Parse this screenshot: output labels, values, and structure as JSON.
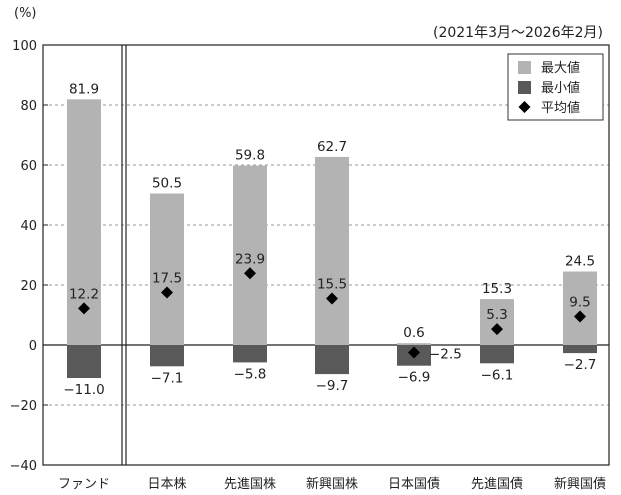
{
  "chart_data": {
    "type": "bar",
    "unit_label": "(%)",
    "period": "(2021年3月～2026年2月)",
    "categories": [
      "ファンド",
      "日本株",
      "先進国株",
      "新興国株",
      "日本国債",
      "先進国債",
      "新興国債"
    ],
    "series": [
      {
        "name": "最大値",
        "values": [
          81.9,
          50.5,
          59.8,
          62.7,
          0.6,
          15.3,
          24.5
        ],
        "color": "#b3b3b3"
      },
      {
        "name": "最小値",
        "values": [
          -11.0,
          -7.1,
          -5.8,
          -9.7,
          -6.9,
          -6.1,
          -2.7
        ],
        "color": "#595959"
      },
      {
        "name": "平均値",
        "values": [
          12.2,
          17.5,
          23.9,
          15.5,
          -2.5,
          5.3,
          9.5
        ],
        "color": "#000000"
      }
    ],
    "max_labels": [
      "81.9",
      "50.5",
      "59.8",
      "62.7",
      "0.6",
      "15.3",
      "24.5"
    ],
    "min_labels": [
      "−11.0",
      "−7.1",
      "−5.8",
      "−9.7",
      "−6.9",
      "−6.1",
      "−2.7"
    ],
    "avg_labels": [
      "12.2",
      "17.5",
      "23.9",
      "15.5",
      "−2.5",
      "5.3",
      "9.5"
    ],
    "ylim": [
      -40,
      100
    ],
    "yticks": [
      -40,
      -20,
      0,
      20,
      40,
      60,
      80,
      100
    ],
    "ytick_labels": [
      "−40",
      "−20",
      "0",
      "20",
      "40",
      "60",
      "80",
      "100"
    ],
    "grid": true,
    "legend_position": "top-right",
    "legend": [
      "最大値",
      "最小値",
      "平均値"
    ]
  }
}
